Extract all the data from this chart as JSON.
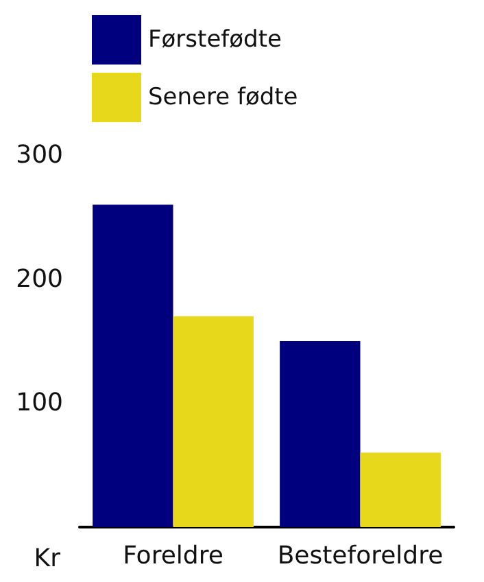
{
  "chart_data": {
    "type": "bar",
    "ylabel": "Kr",
    "categories": [
      "Foreldre",
      "Besteforeldre"
    ],
    "series": [
      {
        "name": "Førstefødte",
        "color": "#00007f",
        "values": [
          260,
          150
        ]
      },
      {
        "name": "Senere fødte",
        "color": "#e8d81c",
        "values": [
          170,
          60
        ]
      }
    ],
    "ylim": [
      0,
      300
    ],
    "yticks": [
      100,
      200,
      300
    ],
    "grid": false,
    "legend": "top left"
  }
}
